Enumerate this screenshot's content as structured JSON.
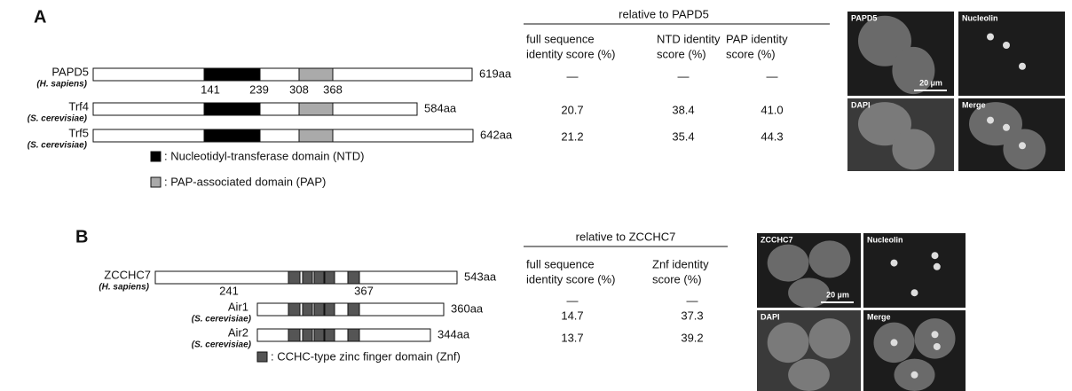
{
  "panel_a": {
    "label": "A",
    "proteins": [
      {
        "name": "PAPD5",
        "species": "(H. sapiens)",
        "length": "619aa"
      },
      {
        "name": "Trf4",
        "species": "(S. cerevisiae)",
        "length": "584aa"
      },
      {
        "name": "Trf5",
        "species": "(S. cerevisiae)",
        "length": "642aa"
      }
    ],
    "positions": [
      "141",
      "239",
      "308",
      "368"
    ],
    "legend": [
      ": Nucleotidyl-transferase domain (NTD)",
      ": PAP-associated domain (PAP)"
    ],
    "table": {
      "title": "relative to PAPD5",
      "headers": [
        [
          "full sequence",
          "identity score (%)"
        ],
        [
          "NTD identity",
          "score (%)"
        ],
        [
          "PAP identity",
          "score (%)"
        ]
      ],
      "rows": [
        [
          "—",
          "—",
          "—"
        ],
        [
          "20.7",
          "38.4",
          "41.0"
        ],
        [
          "21.2",
          "35.4",
          "44.3"
        ]
      ]
    },
    "images": [
      "PAPD5",
      "Nucleolin",
      "DAPI",
      "Merge"
    ],
    "scale_bar": "20 µm"
  },
  "panel_b": {
    "label": "B",
    "proteins": [
      {
        "name": "ZCCHC7",
        "species": "(H. sapiens)",
        "length": "543aa"
      },
      {
        "name": "Air1",
        "species": "(S. cerevisiae)",
        "length": "360aa"
      },
      {
        "name": "Air2",
        "species": "(S. cerevisiae)",
        "length": "344aa"
      }
    ],
    "positions": [
      "241",
      "367"
    ],
    "legend": [
      ": CCHC-type zinc finger domain (Znf)"
    ],
    "table": {
      "title": "relative to ZCCHC7",
      "headers": [
        [
          "full sequence",
          "identity score (%)"
        ],
        [
          "Znf identity",
          "score (%)"
        ]
      ],
      "rows": [
        [
          "—",
          "—"
        ],
        [
          "14.7",
          "37.3"
        ],
        [
          "13.7",
          "39.2"
        ]
      ]
    },
    "images": [
      "ZCCHC7",
      "Nucleolin",
      "DAPI",
      "Merge"
    ],
    "scale_bar": "20 µm"
  }
}
